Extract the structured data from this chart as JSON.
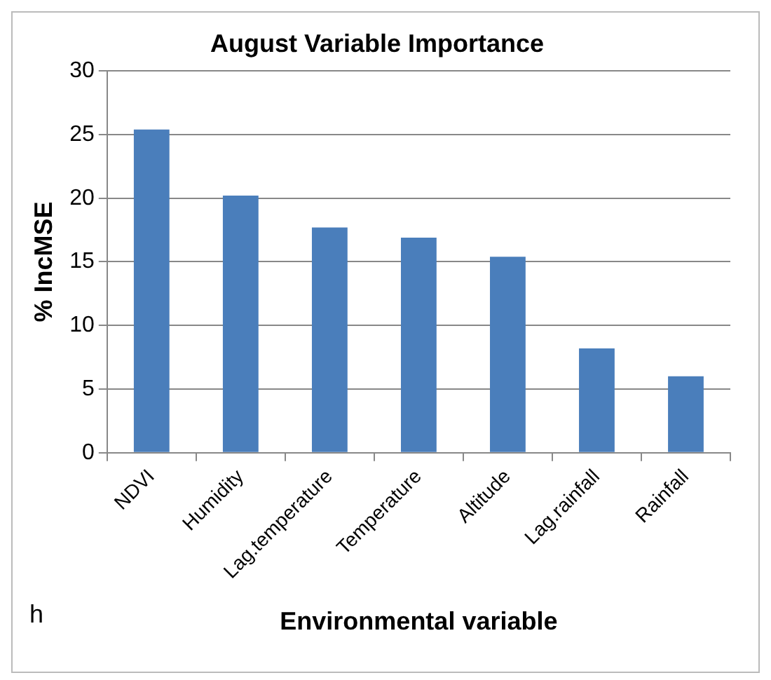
{
  "chart_data": {
    "type": "bar",
    "title": "August Variable Importance",
    "xlabel": "Environmental variable",
    "ylabel": "% IncMSE",
    "categories": [
      "NDVI",
      "Humidity",
      "Lag.temperature",
      "Temperature",
      "Altitude",
      "Lag.rainfall",
      "Rainfall"
    ],
    "values": [
      25.4,
      20.2,
      17.7,
      16.9,
      15.4,
      8.2,
      6.0
    ],
    "color": "#4a7ebb",
    "ylim": [
      0,
      30
    ],
    "yticks": [
      0,
      5,
      10,
      15,
      20,
      25,
      30
    ],
    "grid": "y",
    "legend": false,
    "annotations": [
      "h"
    ]
  }
}
